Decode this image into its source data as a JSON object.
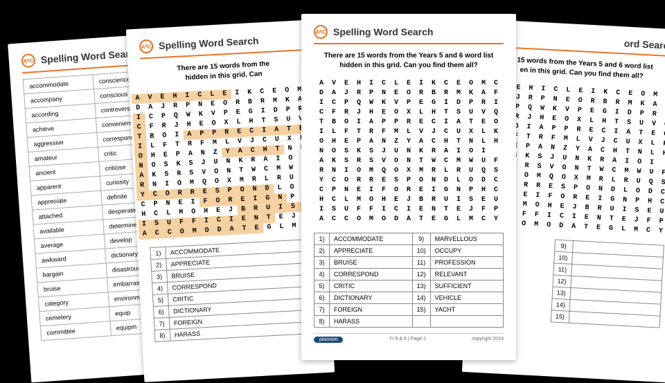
{
  "colors": {
    "background": "#000000",
    "page_bg": "#ffffff",
    "accent": "#e87424",
    "highlight": "#f5d0a0",
    "text": "#333333",
    "border": "#888888",
    "footer_logo_bg": "#1a4a7a"
  },
  "title": "Spelling Word Search",
  "logo_text": "AᴮC",
  "subtitle_line1": "There are 15 words from the Years 5 and 6 word list",
  "subtitle_line2": "hidden in this grid. Can you find them all?",
  "grid_rows": [
    "AVEHICLEIKCEOMC",
    "DAJRPNEORBRMKAF",
    "ICPQWKVPEGIDPRI",
    "CFRJHEOXLHTSUVQ",
    "TBOIAPPRECIATEO",
    "ILFTRFMLVJCUXLK",
    "OHEPANZYACHTNLH",
    "NOSKSJUNKRAIOI",
    "AKSRSVONTWCMWUF",
    "RNIOMQOXMRLRUQSO",
    "YCORRESPONDLODC",
    "CPNEIFOREIGNPHC",
    "HCLMOHEJBRUISEU",
    "ISUFFICIENTEJFP",
    "ACCOMODATEGLMCY"
  ],
  "highlighted_cells": {
    "description": "cells highlighted on answer key page (page2)",
    "rows": {
      "0": [
        0,
        1,
        2,
        3,
        4,
        5,
        6,
        7
      ],
      "2": [
        0
      ],
      "3": [
        0
      ],
      "4": [
        0,
        4,
        5,
        6,
        7,
        8,
        9,
        10,
        11,
        12,
        13
      ],
      "5": [
        0
      ],
      "6": [
        0,
        7,
        8,
        9,
        10,
        11
      ],
      "7": [
        0
      ],
      "8": [
        0
      ],
      "9": [
        0
      ],
      "10": [
        0,
        1,
        2,
        3,
        4,
        5,
        6,
        7,
        8,
        9,
        10
      ],
      "11": [
        5,
        6,
        7,
        8,
        9,
        10,
        11
      ],
      "12": [
        8,
        9,
        10,
        11,
        12,
        13
      ],
      "13": [
        0,
        1,
        2,
        3,
        4,
        5,
        6,
        7,
        8,
        9,
        10
      ],
      "14": [
        0,
        1,
        2,
        3,
        4,
        5,
        6,
        7,
        8,
        9
      ]
    }
  },
  "words_left": [
    {
      "n": "1)",
      "w": "ACCOMMODATE"
    },
    {
      "n": "2)",
      "w": "APPRECIATE"
    },
    {
      "n": "3)",
      "w": "BRUISE"
    },
    {
      "n": "4)",
      "w": "CORRESPOND"
    },
    {
      "n": "5)",
      "w": "CRITIC"
    },
    {
      "n": "6)",
      "w": "DICTIONARY"
    },
    {
      "n": "7)",
      "w": "FOREIGN"
    },
    {
      "n": "8)",
      "w": "HARASS"
    }
  ],
  "words_right": [
    {
      "n": "9)",
      "w": "MARVELLOUS"
    },
    {
      "n": "10)",
      "w": "OCCUPY"
    },
    {
      "n": "11)",
      "w": "PROFESSION"
    },
    {
      "n": "12)",
      "w": "RELEVANT"
    },
    {
      "n": "13)",
      "w": "SUFFICIENT"
    },
    {
      "n": "14)",
      "w": "VEHICLE"
    },
    {
      "n": "15)",
      "w": "YACHT"
    }
  ],
  "blank_right": [
    {
      "n": "9)"
    },
    {
      "n": "10)"
    },
    {
      "n": "11)"
    },
    {
      "n": "12)"
    },
    {
      "n": "13)"
    },
    {
      "n": "14)"
    },
    {
      "n": "15)"
    }
  ],
  "vocab_col1": [
    "accommodate",
    "accompany",
    "according",
    "achieve",
    "aggressive",
    "amateur",
    "ancient",
    "apparent",
    "appreciate",
    "attached",
    "available",
    "average",
    "awkward",
    "bargain",
    "bruise",
    "category",
    "cemetery",
    "committee"
  ],
  "vocab_col2": [
    "conscience",
    "conscious",
    "controversy",
    "convenience",
    "correspond",
    "critic",
    "criticise",
    "curiosity",
    "definite",
    "desperate",
    "determine",
    "develop",
    "dictionary",
    "disastrous",
    "embarrass",
    "environment",
    "equip",
    "equipm"
  ],
  "page1_title": "Spelling Word Searc",
  "page2_title": "Spelling Word Search",
  "page2_subtitle1": "There are 15 words from the",
  "page2_subtitle2": "hidden in this grid. Can",
  "page4_title": "ord Search",
  "page4_subtitle1": "e 15 words from the Years 5 and 6 word list",
  "page4_subtitle2": "en in this grid. Can you find them all?",
  "footer_center": "Yr 5 & 6 | Page 1",
  "footer_right": "copyright 2019",
  "footer_logo": "plazoom"
}
